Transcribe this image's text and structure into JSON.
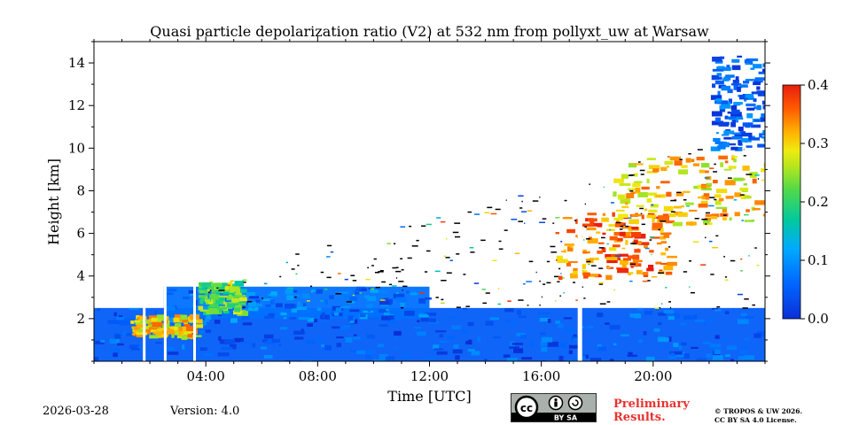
{
  "chart_data": {
    "type": "heatmap",
    "title": "Quasi particle depolarization ratio (V2) at 532 nm from pollyxt_uw at Warsaw",
    "xlabel": "Time [UTC]",
    "ylabel": "Height [km]",
    "xlim_hours": [
      0,
      24
    ],
    "ylim_km": [
      0,
      15
    ],
    "x_ticks": [
      {
        "hour": 4,
        "label": "04:00"
      },
      {
        "hour": 8,
        "label": "08:00"
      },
      {
        "hour": 12,
        "label": "12:00"
      },
      {
        "hour": 16,
        "label": "16:00"
      },
      {
        "hour": 20,
        "label": "20:00"
      }
    ],
    "y_ticks": [
      {
        "km": 2,
        "label": "2"
      },
      {
        "km": 4,
        "label": "4"
      },
      {
        "km": 6,
        "label": "6"
      },
      {
        "km": 8,
        "label": "8"
      },
      {
        "km": 10,
        "label": "10"
      },
      {
        "km": 12,
        "label": "12"
      },
      {
        "km": 14,
        "label": "14"
      }
    ],
    "colorbar": {
      "min": 0.0,
      "max": 0.4,
      "ticks": [
        {
          "value": 0.0,
          "label": "0.0"
        },
        {
          "value": 0.1,
          "label": "0.1"
        },
        {
          "value": 0.2,
          "label": "0.2"
        },
        {
          "value": 0.3,
          "label": "0.3"
        },
        {
          "value": 0.4,
          "label": "0.4"
        }
      ]
    },
    "gaps_hours": [
      1.75,
      2.5,
      3.55,
      17.3
    ],
    "features": [
      {
        "name": "boundary-layer",
        "t": [
          0,
          24
        ],
        "h": [
          0,
          2.5
        ],
        "value": 0.05
      },
      {
        "name": "residual-layer",
        "t": [
          2.5,
          12
        ],
        "h": [
          2.0,
          3.5
        ],
        "value": 0.07
      },
      {
        "name": "morning-aerosol-patch",
        "t": [
          1.3,
          3.6
        ],
        "h": [
          1.2,
          2.2
        ],
        "value": 0.3
      },
      {
        "name": "aerosol-layer-0430",
        "t": [
          3.7,
          5.2
        ],
        "h": [
          2.3,
          3.8
        ],
        "value": 0.22
      },
      {
        "name": "dust-layer-afternoon",
        "t": [
          16.5,
          20.5
        ],
        "h": [
          4.0,
          7.0
        ],
        "value": 0.35
      },
      {
        "name": "upper-dust-layer",
        "t": [
          18.5,
          24
        ],
        "h": [
          6.5,
          9.7
        ],
        "value": 0.3
      },
      {
        "name": "cirrus",
        "t": [
          22,
          24
        ],
        "h": [
          10,
          14.5
        ],
        "value": 0.05
      }
    ]
  },
  "footer": {
    "date": "2026-03-28",
    "version": "Version: 4.0",
    "preliminary_line1": "Preliminary",
    "preliminary_line2": "Results.",
    "copyright_line1": "© TROPOS & UW 2026.",
    "copyright_line2": "CC BY SA 4.0 License.",
    "license_badge": "BY SA"
  },
  "colors": {
    "gap": "#ffffff",
    "cloud_mask": "#000000"
  }
}
